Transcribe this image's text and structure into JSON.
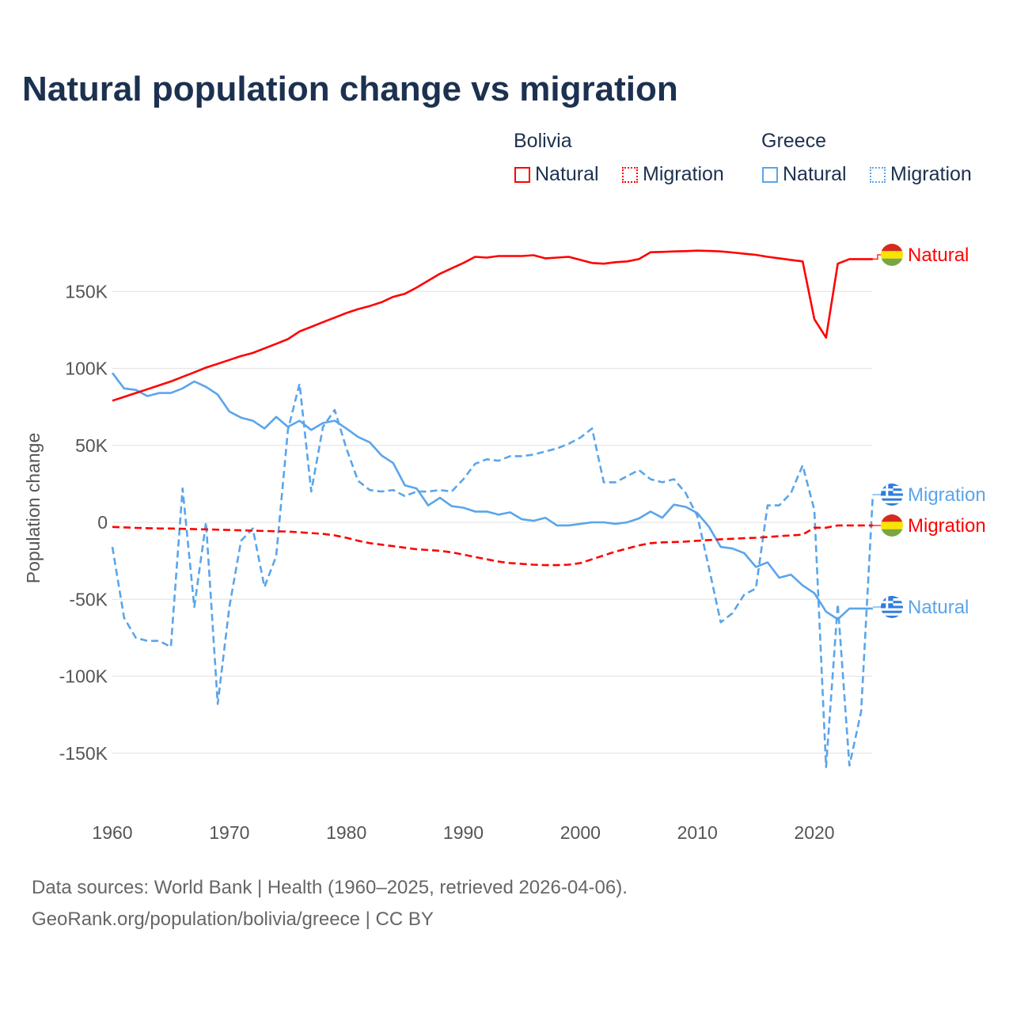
{
  "title": "Natural population change vs migration",
  "legend": {
    "groups": [
      {
        "name": "Bolivia",
        "items": [
          "Natural",
          "Migration"
        ]
      },
      {
        "name": "Greece",
        "items": [
          "Natural",
          "Migration"
        ]
      }
    ]
  },
  "footer": {
    "line1": "Data sources: World Bank | Health (1960–2025, retrieved 2026-04-06).",
    "line2": "GeoRank.org/population/bolivia/greece | CC BY"
  },
  "colors": {
    "bolivia": "#ff0000",
    "greece": "#5aa5ea",
    "text": "#1c3150"
  },
  "chart_data": {
    "type": "line",
    "title": "Natural population change vs migration",
    "xlabel": "",
    "ylabel": "Population change",
    "xlim": [
      1960,
      2025
    ],
    "ylim": [
      -170000,
      195000
    ],
    "xticks": [
      1960,
      1970,
      1980,
      1990,
      2000,
      2010,
      2020
    ],
    "yticks": [
      {
        "v": 150000,
        "label": "150K"
      },
      {
        "v": 100000,
        "label": "100K"
      },
      {
        "v": 50000,
        "label": "50K"
      },
      {
        "v": 0,
        "label": "0"
      },
      {
        "v": -50000,
        "label": "-50K"
      },
      {
        "v": -100000,
        "label": "-100K"
      },
      {
        "v": -150000,
        "label": "-150K"
      }
    ],
    "x_start": 1960,
    "series": [
      {
        "name": "Bolivia Natural",
        "country": "Bolivia",
        "kind": "Natural",
        "color": "#ff0000",
        "dashed": false,
        "end_label": "Natural",
        "values_k": [
          79,
          81.5,
          84,
          86.5,
          89,
          91.5,
          94.5,
          97.5,
          100.5,
          103,
          105.5,
          108,
          110,
          113,
          116,
          119,
          124,
          127,
          130,
          133,
          136,
          138.5,
          140.5,
          143,
          146.5,
          148.5,
          152.5,
          157,
          161.5,
          165,
          168.5,
          172.5,
          172,
          173,
          173,
          173,
          173.5,
          171.5,
          172,
          172.5,
          170.5,
          168.5,
          168,
          169,
          169.5,
          171,
          175.5,
          175.7,
          176,
          176.2,
          176.5,
          176.3,
          176,
          175.3,
          174.5,
          173.8,
          172.5,
          171.5,
          170.5,
          169.5,
          132,
          120,
          168,
          171,
          171,
          171
        ]
      },
      {
        "name": "Bolivia Migration",
        "country": "Bolivia",
        "kind": "Migration",
        "color": "#ff0000",
        "dashed": true,
        "end_label": "Migration",
        "values_k": [
          -3,
          -3.3,
          -3.6,
          -3.8,
          -4,
          -4,
          -4.2,
          -4.4,
          -4.6,
          -4.8,
          -5,
          -5.2,
          -5.4,
          -5.6,
          -5.8,
          -6,
          -6.5,
          -7,
          -7.5,
          -8.5,
          -10,
          -12,
          -13.5,
          -14.5,
          -15.5,
          -16.5,
          -17.5,
          -18,
          -18.5,
          -19.5,
          -21,
          -22.5,
          -24,
          -25.5,
          -26.5,
          -27,
          -27.5,
          -27.8,
          -27.8,
          -27.5,
          -26.5,
          -24,
          -21.5,
          -19,
          -17,
          -15,
          -13.5,
          -13,
          -12.8,
          -12.5,
          -12,
          -11.5,
          -11,
          -10.7,
          -10.3,
          -10,
          -9.5,
          -9,
          -8.5,
          -8,
          -3.5,
          -3.5,
          -2,
          -2,
          -2,
          -2
        ]
      },
      {
        "name": "Greece Natural",
        "country": "Greece",
        "kind": "Natural",
        "color": "#5aa5ea",
        "dashed": false,
        "end_label": "Natural",
        "values_k": [
          97,
          87,
          86,
          82,
          84,
          84,
          87,
          91.5,
          88,
          83,
          72,
          68,
          66,
          61,
          68.5,
          62,
          66,
          60,
          64.5,
          66,
          61,
          55.5,
          52,
          43.5,
          38.5,
          24,
          22,
          11,
          16,
          10.5,
          9.5,
          7,
          7,
          5,
          6.5,
          2,
          1,
          3,
          -2,
          -2,
          -1,
          0,
          0,
          -1,
          0,
          2.5,
          7,
          3,
          11.5,
          10,
          6,
          -3,
          -16,
          -17,
          -20,
          -29,
          -26,
          -36,
          -34,
          -41,
          -46,
          -58,
          -63,
          -56,
          -56,
          -56
        ]
      },
      {
        "name": "Greece Migration",
        "country": "Greece",
        "kind": "Migration",
        "color": "#5aa5ea",
        "dashed": true,
        "end_label": "Migration",
        "values_k": [
          -16,
          -62,
          -75,
          -77,
          -77,
          -81,
          22,
          -55,
          0,
          -118,
          -55,
          -12,
          -4,
          -42,
          -22,
          60,
          90,
          20,
          62,
          73,
          48,
          27,
          21,
          20,
          21,
          17,
          20,
          20,
          21,
          20,
          28,
          38,
          41,
          40,
          43,
          43,
          44,
          46,
          48,
          51,
          55,
          61,
          26,
          26,
          30,
          34,
          28,
          26,
          28,
          19,
          4,
          -30,
          -65,
          -59,
          -47,
          -43,
          11,
          11,
          19,
          37,
          8,
          -159,
          -53,
          -158,
          -123,
          18
        ]
      }
    ]
  }
}
